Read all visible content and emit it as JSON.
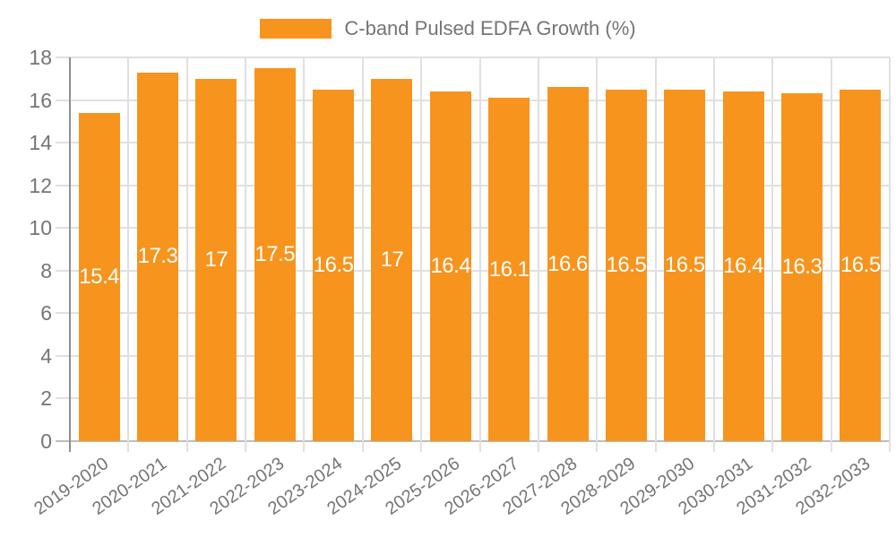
{
  "chart_data": {
    "type": "bar",
    "title": "C-band Pulsed EDFA Growth (%)",
    "legend_position": "top-center",
    "grid": true,
    "categories": [
      "2019-2020",
      "2020-2021",
      "2021-2022",
      "2022-2023",
      "2023-2024",
      "2024-2025",
      "2025-2026",
      "2026-2027",
      "2027-2028",
      "2028-2029",
      "2029-2030",
      "2030-2031",
      "2031-2032",
      "2032-2033"
    ],
    "values": [
      15.4,
      17.3,
      17,
      17.5,
      16.5,
      17,
      16.4,
      16.1,
      16.6,
      16.5,
      16.5,
      16.4,
      16.3,
      16.5
    ],
    "value_labels": [
      "15.4",
      "17.3",
      "17",
      "17.5",
      "16.5",
      "17",
      "16.4",
      "16.1",
      "16.6",
      "16.5",
      "16.5",
      "16.4",
      "16.3",
      "16.5"
    ],
    "xlabel": "",
    "ylabel": "",
    "ylim": [
      0,
      18
    ],
    "ytick_step": 2,
    "ytick_labels": [
      "0",
      "2",
      "4",
      "6",
      "8",
      "10",
      "12",
      "14",
      "16",
      "18"
    ],
    "colors": {
      "bar": "#F7941E",
      "grid_line": "#E0E0E0",
      "axis_line": "#8F8F8F",
      "baseline": "#BDBDBD",
      "tick_text": "#757575",
      "value_text": "#FFFFFF",
      "legend_text": "#757575"
    }
  }
}
